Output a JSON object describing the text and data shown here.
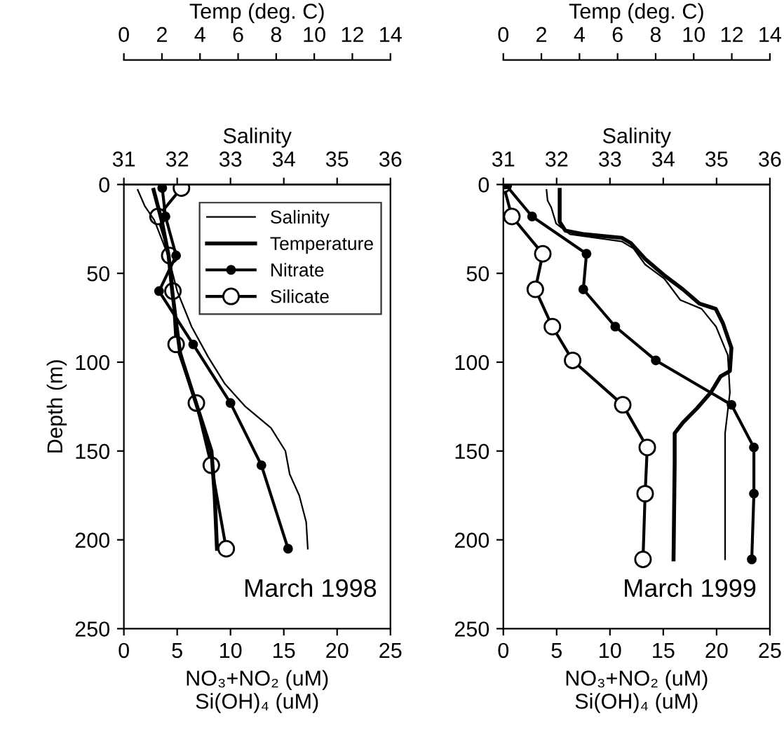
{
  "chart_data": [
    {
      "type": "line",
      "xlabel": "NO₃+NO₂ (uM)\nSi(OH)₄ (uM)",
      "ylabel": "Depth (m)",
      "xlim": [
        0,
        25
      ],
      "xticks": [
        0,
        5,
        10,
        15,
        20,
        25
      ],
      "ylim": [
        250,
        0
      ],
      "yticks": [
        0,
        50,
        100,
        150,
        200,
        250
      ],
      "legend": "top right",
      "annotations": [
        "March 1998"
      ],
      "series": [
        {
          "name": "Nitrate",
          "color": "#000000",
          "marker": "circle",
          "x": [
            3.6,
            3.9,
            4.9,
            3.3,
            6.5,
            10,
            12.9,
            15.4
          ],
          "values": [
            2,
            18,
            40,
            60,
            90,
            123,
            158,
            205
          ]
        },
        {
          "name": "Silicate",
          "color": "#000000",
          "marker": "circle",
          "x": [
            5.4,
            3.2,
            4.3,
            4.6,
            4.9,
            6.8,
            8.2,
            9.6
          ],
          "values": [
            2,
            18,
            40,
            60,
            90,
            123,
            158,
            205
          ]
        }
      ]
    },
    {
      "type": "line",
      "xlabel": "Temp (deg. C)",
      "xlim": [
        0,
        14
      ],
      "xticks": [
        0,
        2,
        4,
        6,
        8,
        10,
        12,
        14
      ],
      "ylim": [
        250,
        0
      ],
      "tick_labels": "x",
      "series": [
        {
          "name": "Temperature",
          "color": "#000000",
          "marker": "none",
          "x": [
            1.56,
            1.98,
            2.35,
            2.54,
            2.77,
            2.96,
            3.1,
            4.0,
            4.6,
            4.77,
            4.89
          ],
          "values": [
            3,
            20,
            40,
            60,
            80,
            95,
            100,
            130,
            150,
            175,
            205
          ]
        }
      ]
    },
    {
      "type": "line",
      "xlabel": "Salinity",
      "xlim": [
        31,
        36
      ],
      "xticks": [
        31,
        32,
        33,
        34,
        35,
        36
      ],
      "ylim": [
        250,
        0
      ],
      "tick_labels": "x",
      "series": [
        {
          "name": "Salinity",
          "color": "#000000",
          "marker": "none",
          "x": [
            31.26,
            31.39,
            31.57,
            31.83,
            32.0,
            32.27,
            32.58,
            32.89,
            33.28,
            33.76,
            34.03,
            34.11,
            34.29,
            34.42,
            34.45
          ],
          "values": [
            3,
            12,
            20,
            40,
            60,
            80,
            97,
            112,
            125,
            137,
            150,
            163,
            175,
            190,
            205
          ]
        }
      ]
    },
    {
      "type": "line",
      "xlabel": "NO₃+NO₂ (uM)\nSi(OH)₄ (uM)",
      "xlim": [
        0,
        25
      ],
      "xticks": [
        0,
        5,
        10,
        15,
        20,
        25
      ],
      "ylim": [
        250,
        0
      ],
      "yticks": [
        0,
        50,
        100,
        150,
        200,
        250
      ],
      "annotations": [
        "March 1999"
      ],
      "series": [
        {
          "color": "#000000",
          "marker": "circle",
          "x": [
            0.2,
            2.7,
            7.8,
            7.5,
            10.5,
            14.3,
            21.4,
            23.5,
            23.5,
            23.3
          ],
          "values": [
            0,
            18,
            39,
            59,
            80,
            99,
            124,
            148,
            174,
            211
          ]
        },
        {
          "color": "#000000",
          "marker": "circle",
          "x": [
            0,
            0.8,
            3.7,
            3.0,
            4.6,
            6.5,
            11.2,
            13.5,
            13.3,
            13.1
          ],
          "values": [
            0,
            18,
            39,
            59,
            80,
            99,
            124,
            148,
            174,
            211
          ]
        }
      ]
    },
    {
      "type": "line",
      "xlabel": "Temp (deg. C)",
      "xlim": [
        0,
        14
      ],
      "xticks": [
        0,
        2,
        4,
        6,
        8,
        10,
        12,
        14
      ],
      "ylim": [
        250,
        0
      ],
      "tick_labels": "x",
      "series": [
        {
          "color": "#000000",
          "marker": "none",
          "x": [
            2.96,
            2.96,
            3.26,
            4.25,
            6.22,
            6.7,
            7.46,
            8.44,
            9.43,
            10.3,
            11.16,
            11.53,
            11.98,
            11.9,
            11.41,
            10.9,
            10.17,
            9.43,
            9.0,
            9.0,
            8.94
          ],
          "values": [
            3,
            21,
            26,
            28,
            30,
            33,
            42,
            51,
            59,
            67,
            70,
            78,
            92,
            105,
            108,
            117,
            126,
            134,
            140,
            156,
            211
          ]
        }
      ]
    },
    {
      "type": "line",
      "xlabel": "Salinity",
      "xlim": [
        31,
        36
      ],
      "xticks": [
        31,
        32,
        33,
        34,
        35,
        36
      ],
      "ylim": [
        250,
        0
      ],
      "tick_labels": "x",
      "series": [
        {
          "color": "#000000",
          "marker": "none",
          "x": [
            31.81,
            31.83,
            31.9,
            31.99,
            32.25,
            33.22,
            33.44,
            33.66,
            34.02,
            34.32,
            34.72,
            34.99,
            35.21,
            35.25,
            35.16,
            35.16
          ],
          "values": [
            3,
            9,
            13,
            22,
            28,
            32,
            36,
            45,
            53,
            65,
            70,
            80,
            96,
            117,
            140,
            211
          ]
        }
      ]
    }
  ]
}
